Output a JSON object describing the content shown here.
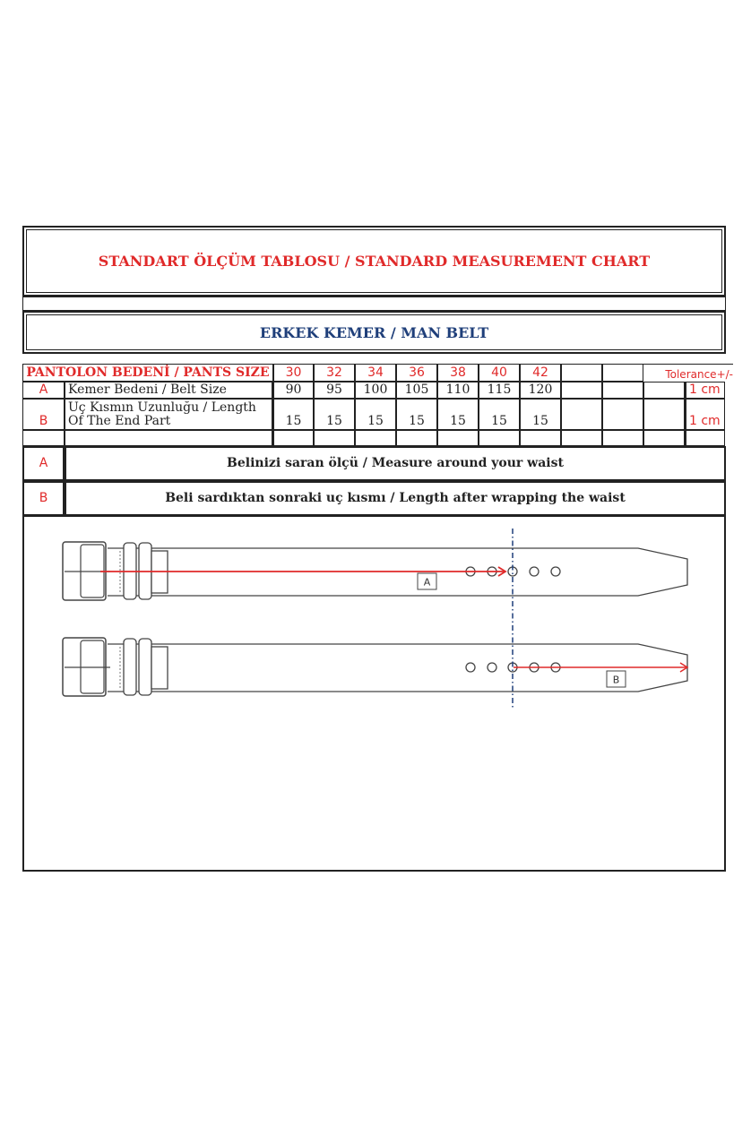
{
  "title": "STANDART ÖLÇÜM TABLOSU / STANDARD MEASUREMENT CHART",
  "subtitle": "ERKEK KEMER / MAN BELT",
  "colors": {
    "title": "#e02a2a",
    "subtitle": "#1f3f7a",
    "arrow": "#e02a2a",
    "guide_line": "#1f3f7a"
  },
  "table": {
    "header_label": "PANTOLON BEDENİ / PANTS SIZE",
    "sizes": [
      "30",
      "32",
      "34",
      "36",
      "38",
      "40",
      "42",
      "",
      "",
      ""
    ],
    "tolerance_label": "Tolerance+/-",
    "rows": [
      {
        "letter": "A",
        "label": "Kemer Bedeni / Belt Size",
        "values": [
          "90",
          "95",
          "100",
          "105",
          "110",
          "115",
          "120",
          "",
          "",
          ""
        ],
        "tolerance": "1 cm"
      },
      {
        "letter": "B",
        "label": "Uç Kısmın Uzunluğu / Length Of The End Part",
        "values": [
          "15",
          "15",
          "15",
          "15",
          "15",
          "15",
          "15",
          "",
          "",
          ""
        ],
        "tolerance": "1 cm"
      }
    ]
  },
  "descriptions": [
    {
      "letter": "A",
      "text": "Belinizi saran ölçü / Measure around your waist"
    },
    {
      "letter": "B",
      "text": "Beli sardıktan sonraki uç kısmı / Length after wrapping the waist"
    }
  ],
  "diagram": {
    "label_a": "A",
    "label_b": "B"
  }
}
